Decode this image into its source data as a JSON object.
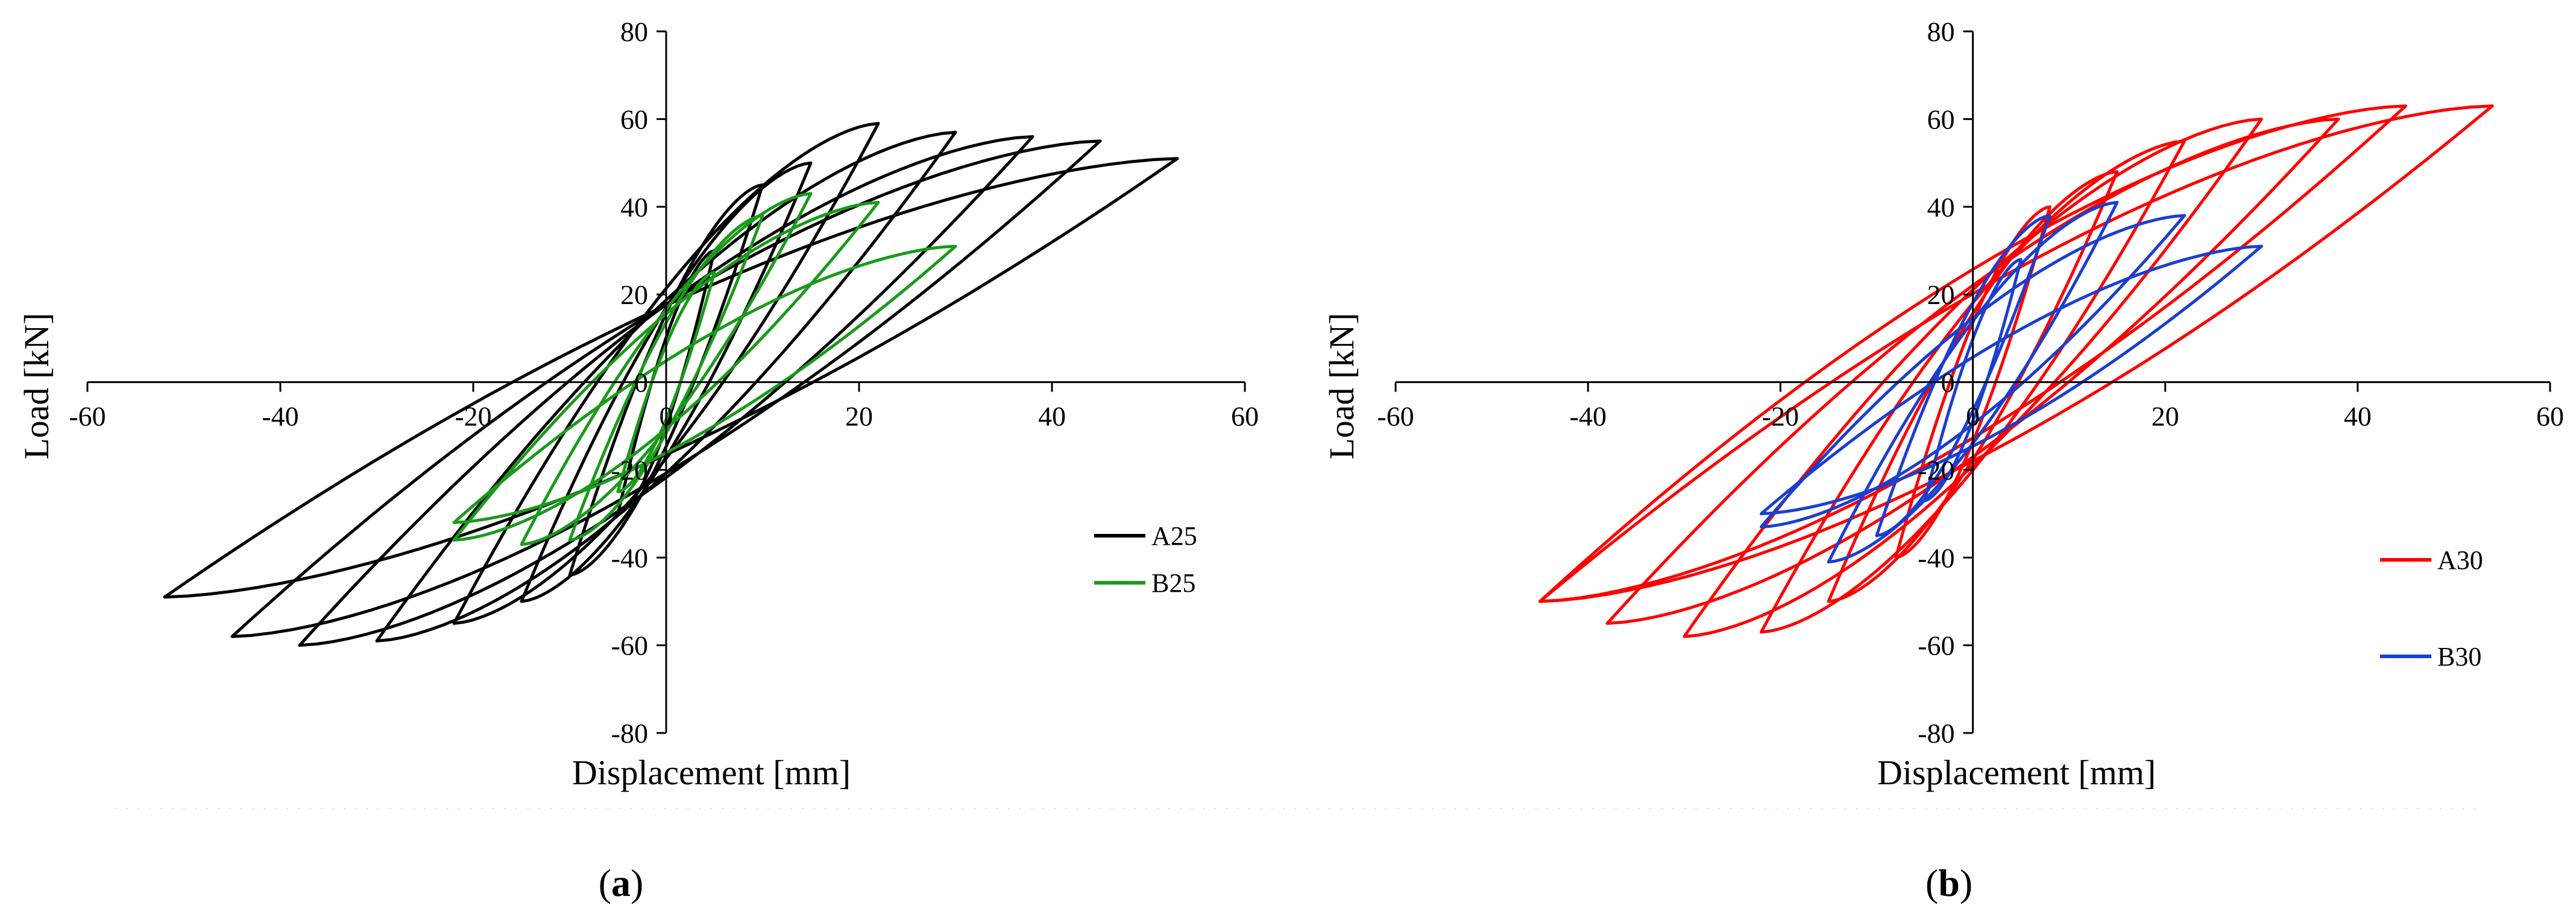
{
  "chart_data": [
    {
      "panel_label": "a",
      "type": "line",
      "xlabel": "Displacement [mm]",
      "ylabel": "Load [kN]",
      "xlim": [
        -60,
        60
      ],
      "ylim": [
        -80,
        80
      ],
      "xticks": [
        "-60",
        "-40",
        "-20",
        "0",
        "20",
        "40",
        "60"
      ],
      "yticks": [
        "80",
        "60",
        "40",
        "20",
        "0",
        "-20",
        "-40",
        "-60",
        "-80"
      ],
      "grid": false,
      "legend_position": "bottom-right",
      "series": [
        {
          "name": "A25",
          "color": "#000000",
          "cycles": [
            {
              "dmax": 5,
              "pmax": 30,
              "dmin": -5,
              "pmin": -30
            },
            {
              "dmax": 10,
              "pmax": 45,
              "dmin": -10,
              "pmin": -44
            },
            {
              "dmax": 15,
              "pmax": 50,
              "dmin": -15,
              "pmin": -50
            },
            {
              "dmax": 22,
              "pmax": 59,
              "dmin": -22,
              "pmin": -55
            },
            {
              "dmax": 30,
              "pmax": 57,
              "dmin": -30,
              "pmin": -59
            },
            {
              "dmax": 38,
              "pmax": 56,
              "dmin": -38,
              "pmin": -60
            },
            {
              "dmax": 45,
              "pmax": 55,
              "dmin": -45,
              "pmin": -58
            },
            {
              "dmax": 53,
              "pmax": 51,
              "dmin": -52,
              "pmin": -49
            }
          ]
        },
        {
          "name": "B25",
          "color": "#1a9a1a",
          "cycles": [
            {
              "dmax": 5,
              "pmax": 25,
              "dmin": -5,
              "pmin": -25
            },
            {
              "dmax": 10,
              "pmax": 38,
              "dmin": -10,
              "pmin": -36
            },
            {
              "dmax": 15,
              "pmax": 43,
              "dmin": -15,
              "pmin": -37
            },
            {
              "dmax": 22,
              "pmax": 41,
              "dmin": -22,
              "pmin": -36
            },
            {
              "dmax": 30,
              "pmax": 31,
              "dmin": -22,
              "pmin": -32
            }
          ]
        }
      ]
    },
    {
      "panel_label": "b",
      "type": "line",
      "xlabel": "Displacement [mm]",
      "ylabel": "Load [kN]",
      "xlim": [
        -60,
        60
      ],
      "ylim": [
        -80,
        80
      ],
      "xticks": [
        "-60",
        "-40",
        "-20",
        "0",
        "20",
        "40",
        "60"
      ],
      "yticks": [
        "80",
        "60",
        "40",
        "20",
        "0",
        "-20",
        "-40",
        "-60",
        "-80"
      ],
      "grid": false,
      "legend_position": "bottom-right",
      "series": [
        {
          "name": "A30",
          "color": "#ff0000",
          "cycles": [
            {
              "dmax": 8,
              "pmax": 40,
              "dmin": -8,
              "pmin": -40
            },
            {
              "dmax": 15,
              "pmax": 48,
              "dmin": -15,
              "pmin": -50
            },
            {
              "dmax": 22,
              "pmax": 55,
              "dmin": -22,
              "pmin": -57
            },
            {
              "dmax": 30,
              "pmax": 60,
              "dmin": -30,
              "pmin": -58
            },
            {
              "dmax": 38,
              "pmax": 60,
              "dmin": -38,
              "pmin": -55
            },
            {
              "dmax": 45,
              "pmax": 63,
              "dmin": -45,
              "pmin": -50
            },
            {
              "dmax": 54,
              "pmax": 63,
              "dmin": -45,
              "pmin": -50
            }
          ]
        },
        {
          "name": "B30",
          "color": "#1a3fd0",
          "cycles": [
            {
              "dmax": 5,
              "pmax": 28,
              "dmin": -5,
              "pmin": -27
            },
            {
              "dmax": 8,
              "pmax": 38,
              "dmin": -10,
              "pmin": -35
            },
            {
              "dmax": 15,
              "pmax": 41,
              "dmin": -15,
              "pmin": -41
            },
            {
              "dmax": 22,
              "pmax": 38,
              "dmin": -22,
              "pmin": -33
            },
            {
              "dmax": 30,
              "pmax": 31,
              "dmin": -22,
              "pmin": -30
            }
          ]
        }
      ]
    }
  ]
}
